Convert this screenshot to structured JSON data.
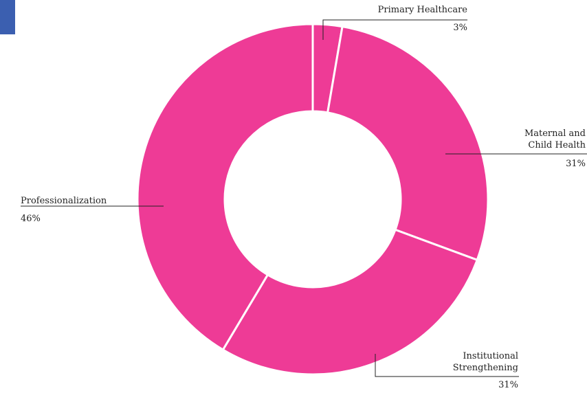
{
  "chart_data": {
    "type": "donut",
    "categories": [
      "Primary Healthcare",
      "Maternal and Child Health",
      "Institutional Strengthening",
      "Professionalization"
    ],
    "values": [
      3,
      31,
      31,
      46
    ],
    "value_labels": [
      "3%",
      "31%",
      "31%",
      "46%"
    ],
    "color": "#ee3b96"
  }
}
